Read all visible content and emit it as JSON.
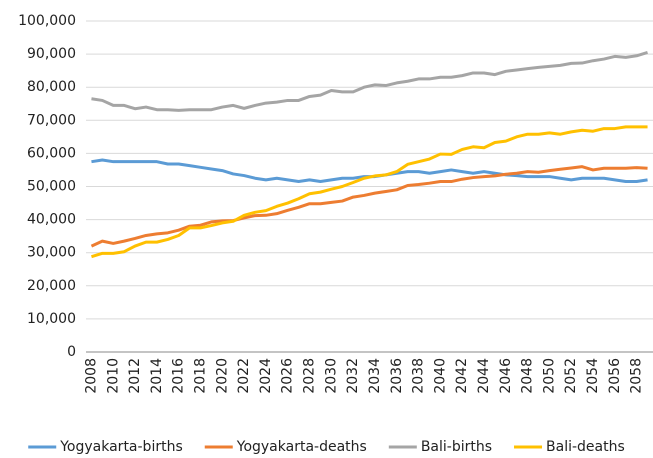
{
  "chart_data": {
    "type": "line",
    "categories": [
      "2008",
      null,
      "2010",
      null,
      "2012",
      null,
      "2014",
      null,
      "2016",
      null,
      "2018",
      null,
      "2020",
      null,
      "2022",
      null,
      "2024",
      null,
      "2026",
      null,
      "2028",
      null,
      "2030",
      null,
      "2032",
      null,
      "2034",
      null,
      "2036",
      null,
      "2038",
      null,
      "2040",
      null,
      "2042",
      null,
      "2044",
      null,
      "2046",
      null,
      "2048",
      null,
      "2050",
      null,
      "2052",
      null,
      "2054",
      null,
      "2056",
      null,
      "2058",
      null
    ],
    "series": [
      {
        "name": "Yogyakarta-births",
        "color": "#5b9bd5",
        "values": [
          57500,
          58000,
          57500,
          57500,
          57500,
          57500,
          57500,
          56800,
          56800,
          56300,
          55800,
          55300,
          54800,
          53800,
          53300,
          52500,
          52000,
          52500,
          52000,
          51500,
          52000,
          51500,
          52000,
          52500,
          52500,
          53000,
          53000,
          53500,
          54000,
          54500,
          54500,
          54000,
          54500,
          55000,
          54500,
          54000,
          54500,
          54000,
          53500,
          53300,
          53000,
          53000,
          53000,
          52500,
          52000,
          52500,
          52500,
          52500,
          52000,
          51500,
          51500,
          52000
        ]
      },
      {
        "name": "Yogyakarta-deaths",
        "color": "#ed7d31",
        "values": [
          32000,
          33500,
          32800,
          33500,
          34300,
          35200,
          35700,
          36000,
          36800,
          38000,
          38300,
          39300,
          39600,
          39700,
          40500,
          41200,
          41300,
          41800,
          42800,
          43700,
          44800,
          44800,
          45200,
          45600,
          46800,
          47300,
          48000,
          48500,
          49000,
          50300,
          50600,
          51000,
          51500,
          51500,
          52200,
          52700,
          53000,
          53200,
          53700,
          54000,
          54500,
          54300,
          54800,
          55200,
          55600,
          56000,
          55000,
          55500,
          55500,
          55500,
          55700,
          55500
        ]
      },
      {
        "name": "Bali-births",
        "color": "#a5a5a5",
        "values": [
          76500,
          76000,
          74500,
          74500,
          73500,
          74000,
          73200,
          73200,
          73000,
          73200,
          73200,
          73200,
          74000,
          74500,
          73600,
          74500,
          75200,
          75500,
          76000,
          76000,
          77200,
          77600,
          79000,
          78600,
          78600,
          80000,
          80700,
          80500,
          81300,
          81800,
          82500,
          82500,
          83000,
          83000,
          83500,
          84300,
          84300,
          83800,
          84800,
          85200,
          85600,
          86000,
          86300,
          86600,
          87200,
          87300,
          88000,
          88500,
          89300,
          89000,
          89500,
          90500
        ]
      },
      {
        "name": "Bali-deaths",
        "color": "#ffc000",
        "values": [
          28800,
          29800,
          29800,
          30300,
          32000,
          33200,
          33200,
          34000,
          35200,
          37500,
          37500,
          38200,
          39000,
          39500,
          41300,
          42200,
          42700,
          44000,
          45000,
          46300,
          47800,
          48300,
          49200,
          50000,
          51200,
          52500,
          53200,
          53500,
          54500,
          56700,
          57500,
          58300,
          59800,
          59700,
          61200,
          62000,
          61700,
          63300,
          63700,
          65000,
          65800,
          65800,
          66200,
          65800,
          66500,
          67000,
          66700,
          67500,
          67500,
          68000,
          68000,
          68000
        ]
      }
    ],
    "ylim": [
      0,
      100000
    ],
    "yticks": [
      0,
      {
        "value": 10000,
        "label": "10,000"
      },
      {
        "value": 20000,
        "label": "20,000"
      },
      {
        "value": 30000,
        "label": "30,000"
      },
      {
        "value": 40000,
        "label": "40,000"
      },
      {
        "value": 50000,
        "label": "50,000"
      },
      {
        "value": 60000,
        "label": "60,000"
      },
      {
        "value": 70000,
        "label": "70,000"
      },
      {
        "value": 80000,
        "label": "80,000"
      },
      {
        "value": 90000,
        "label": "90,000"
      },
      {
        "value": 100000,
        "label": "100,000"
      }
    ],
    "grid": true
  }
}
